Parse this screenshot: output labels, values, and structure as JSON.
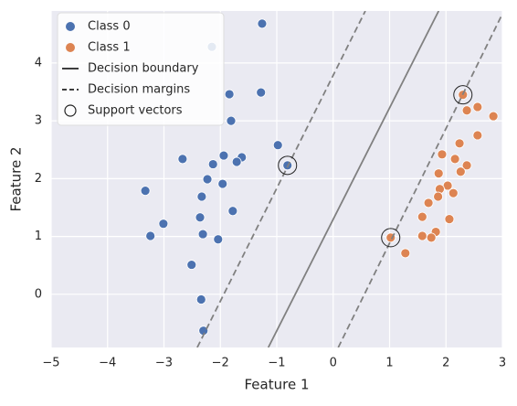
{
  "chart_data": {
    "type": "scatter",
    "xlabel": "Feature 1",
    "ylabel": "Feature 2",
    "xlim": [
      -5,
      3
    ],
    "ylim": [
      -0.92,
      4.9
    ],
    "xticks": [
      {
        "value": -5,
        "label": "−5"
      },
      {
        "value": -4,
        "label": "−4"
      },
      {
        "value": -3,
        "label": "−3"
      },
      {
        "value": -2,
        "label": "−2"
      },
      {
        "value": -1,
        "label": "−1"
      },
      0,
      1,
      2,
      3
    ],
    "yticks": [
      0,
      1,
      2,
      3,
      4
    ],
    "grid": true,
    "legend": "upper left",
    "series": [
      {
        "name": "Class 0",
        "kind": "scatter",
        "color": "#4c72b0",
        "x": [
          -1.26,
          -2.15,
          -1.84,
          -1.28,
          -1.81,
          -0.98,
          -0.81,
          -1.94,
          -1.62,
          -1.71,
          -2.67,
          -2.13,
          -2.23,
          -1.96,
          -3.33,
          -2.33,
          -1.78,
          -2.36,
          -3.01,
          -3.24,
          -2.31,
          -2.04,
          -2.51,
          -2.34,
          -2.3
        ],
        "values": [
          4.68,
          4.28,
          3.46,
          3.49,
          3.0,
          2.58,
          2.23,
          2.4,
          2.37,
          2.29,
          2.34,
          2.25,
          1.99,
          1.91,
          1.79,
          1.69,
          1.44,
          1.33,
          1.22,
          1.01,
          1.04,
          0.95,
          0.51,
          -0.09,
          -0.63
        ]
      },
      {
        "name": "Class 1",
        "kind": "scatter",
        "color": "#dd8452",
        "x": [
          2.3,
          2.56,
          2.37,
          2.84,
          2.56,
          2.24,
          1.93,
          2.16,
          2.37,
          2.26,
          1.87,
          2.03,
          1.89,
          2.13,
          1.86,
          1.69,
          1.58,
          2.06,
          1.02,
          1.82,
          1.58,
          1.74,
          1.28
        ],
        "values": [
          3.45,
          3.24,
          3.18,
          3.08,
          2.75,
          2.61,
          2.42,
          2.34,
          2.23,
          2.12,
          2.09,
          1.88,
          1.82,
          1.75,
          1.69,
          1.58,
          1.34,
          1.3,
          0.98,
          1.08,
          1.01,
          0.98,
          0.71
        ]
      },
      {
        "name": "Decision boundary",
        "kind": "line",
        "dashed": false,
        "color": "#808080",
        "x": [
          -1.15,
          1.87
        ],
        "values": [
          -0.92,
          4.9
        ]
      },
      {
        "name": "Decision margins",
        "kind": "line",
        "dashed": true,
        "color": "#808080",
        "x": [
          -2.41,
          0.57,
          null,
          0.09,
          3.0
        ],
        "values": [
          -0.92,
          4.9,
          null,
          -0.92,
          4.85
        ]
      },
      {
        "name": "Support vectors",
        "kind": "hollow",
        "color": "#222222",
        "x": [
          -0.81,
          1.02,
          2.3
        ],
        "values": [
          2.23,
          0.98,
          3.45
        ]
      }
    ]
  }
}
